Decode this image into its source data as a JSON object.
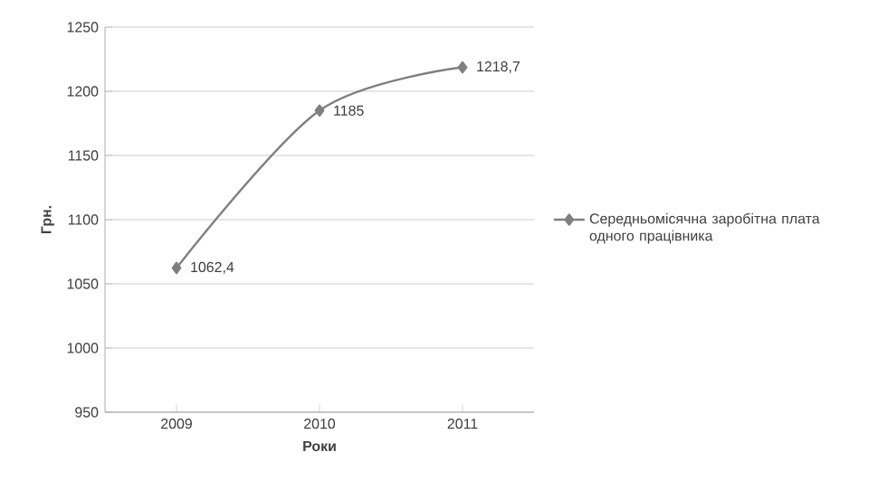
{
  "chart_data": {
    "type": "line",
    "xlabel": "Роки",
    "ylabel": "Грн.",
    "categories": [
      "2009",
      "2010",
      "2011"
    ],
    "series": [
      {
        "name": "Середньомісячна заробітна плата одного працівника",
        "color": "#7f7f7f",
        "values": [
          1062.4,
          1185,
          1218.7
        ],
        "value_labels": [
          "1062,4",
          "1185",
          "1218,7"
        ]
      }
    ],
    "ylim": [
      950,
      1250
    ],
    "yticks": [
      950,
      1000,
      1050,
      1100,
      1150,
      1200,
      1250
    ],
    "grid": "y",
    "legend": "right",
    "marker": "diamond",
    "line_style": "solid"
  }
}
